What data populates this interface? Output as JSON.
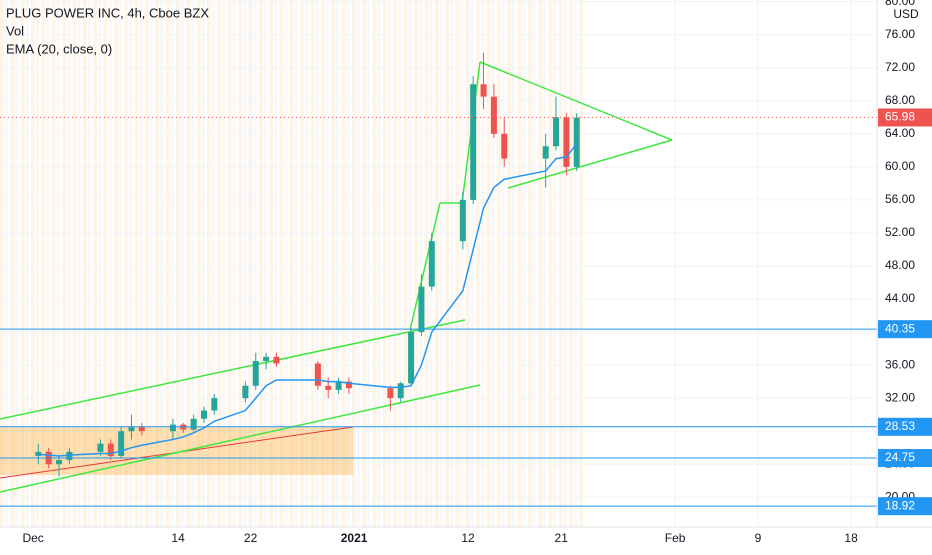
{
  "chart_data": {
    "type": "candlestick",
    "title": "PLUG POWER INC, 4h, Cboe BZX",
    "volume_label": "Vol",
    "currency": "USD",
    "up_color": "#26a69a",
    "down_color": "#ef5350",
    "x": [
      0.5,
      1.5,
      2.5,
      3.5,
      6.5,
      7.5,
      8.5,
      9.5,
      10.5,
      13.5,
      14.5,
      15.5,
      16.5,
      17.5,
      20.5,
      21.5,
      22.5,
      23.5,
      27.5,
      28.5,
      29.5,
      30.5,
      34.5,
      35.5,
      36.5,
      37.5,
      38.5,
      41.5,
      42.5,
      43.5,
      44.5,
      45.5,
      49.5,
      50.5,
      51.5,
      52.5
    ],
    "open": [
      25,
      25.5,
      24,
      24.5,
      25.5,
      26.5,
      25,
      28,
      28.5,
      28,
      28.8,
      28.2,
      29.5,
      30.5,
      32,
      33.5,
      36.5,
      37,
      36.2,
      33.5,
      33,
      34,
      33.2,
      32,
      33.8,
      40,
      45.5,
      51,
      56,
      70,
      68.5,
      64,
      61,
      62.5,
      66,
      60
    ],
    "high": [
      26.5,
      26,
      25,
      26,
      27,
      27,
      28.5,
      30,
      29,
      29.5,
      29,
      30,
      31,
      32.5,
      34,
      37.5,
      37.5,
      37.5,
      36.5,
      34.5,
      34.5,
      34.5,
      33.5,
      34,
      40.5,
      47,
      52,
      57,
      71,
      73.8,
      70,
      66,
      64,
      68.5,
      66.5,
      66.5
    ],
    "low": [
      24,
      23.5,
      22.5,
      24,
      25,
      24.5,
      24.8,
      27,
      27.5,
      27,
      27.8,
      28,
      29,
      30,
      31.5,
      33,
      35.5,
      35.8,
      33,
      32,
      32.5,
      32.5,
      30.5,
      31.5,
      33.5,
      39.5,
      45,
      50,
      55.5,
      67,
      63.5,
      60,
      57.5,
      62,
      59,
      59.5
    ],
    "close": [
      25.5,
      24,
      24.5,
      25.5,
      26.5,
      25,
      28,
      28.5,
      28,
      28.8,
      28.2,
      29.5,
      30.5,
      32,
      33.5,
      36.5,
      37,
      36.2,
      33.5,
      33,
      34,
      33.2,
      32,
      33.8,
      40,
      45.5,
      51,
      56,
      70,
      68.5,
      64,
      61,
      62.5,
      66,
      60,
      65.98
    ],
    "series": [
      {
        "name": "EMA (20, close, 0)",
        "color": "#2196f3",
        "values": [
          25.2,
          25.1,
          25.0,
          25.1,
          25.3,
          25.3,
          25.6,
          26.0,
          26.3,
          27,
          27.3,
          27.8,
          28.4,
          29.2,
          30.5,
          32,
          33.5,
          34.2,
          34.2,
          34,
          34,
          33.8,
          33.3,
          33.3,
          33.5,
          36,
          40,
          45,
          50,
          55,
          57.5,
          58.5,
          59.5,
          61,
          61.2,
          62.8
        ]
      }
    ],
    "xlim": [
      -3.2,
      81.5
    ],
    "xticks": [
      {
        "value": 0,
        "label": "Dec"
      },
      14,
      {
        "value": 21,
        "label": "22"
      },
      {
        "value": 31,
        "label": "2021"
      },
      {
        "value": 42,
        "label": "12"
      },
      {
        "value": 51,
        "label": "21"
      },
      {
        "value": 62,
        "label": "Feb"
      },
      {
        "value": 70,
        "label": "9"
      },
      {
        "value": 79,
        "label": "18"
      }
    ],
    "ylim": [
      16.4,
      80.2
    ],
    "yticks": [
      {
        "value": 20,
        "label": "20.00"
      },
      {
        "value": 24,
        "label": "24.00"
      },
      {
        "value": 28,
        "label": "28.00"
      },
      {
        "value": 32,
        "label": "32.00"
      },
      {
        "value": 36,
        "label": "36.00"
      },
      {
        "value": 40,
        "label": "40.00"
      },
      {
        "value": 44,
        "label": "44.00"
      },
      {
        "value": 48,
        "label": "48.00"
      },
      {
        "value": 52,
        "label": "52.00"
      },
      {
        "value": 56,
        "label": "56.00"
      },
      {
        "value": 60,
        "label": "60.00"
      },
      {
        "value": 64,
        "label": "64.00"
      },
      {
        "value": 68,
        "label": "68.00"
      },
      {
        "value": 72,
        "label": "72.00"
      },
      {
        "value": 76,
        "label": "76.00"
      },
      {
        "value": 80,
        "label": "80.00"
      }
    ],
    "grid": true,
    "price_lines": [
      {
        "value": 65.98,
        "color": "#ef5350"
      },
      {
        "value": 40.35,
        "color": "#2196f3"
      },
      {
        "value": 28.53,
        "color": "#2196f3"
      },
      {
        "value": 24.75,
        "color": "#2196f3"
      },
      {
        "value": 18.92,
        "color": "#2196f3"
      }
    ]
  }
}
